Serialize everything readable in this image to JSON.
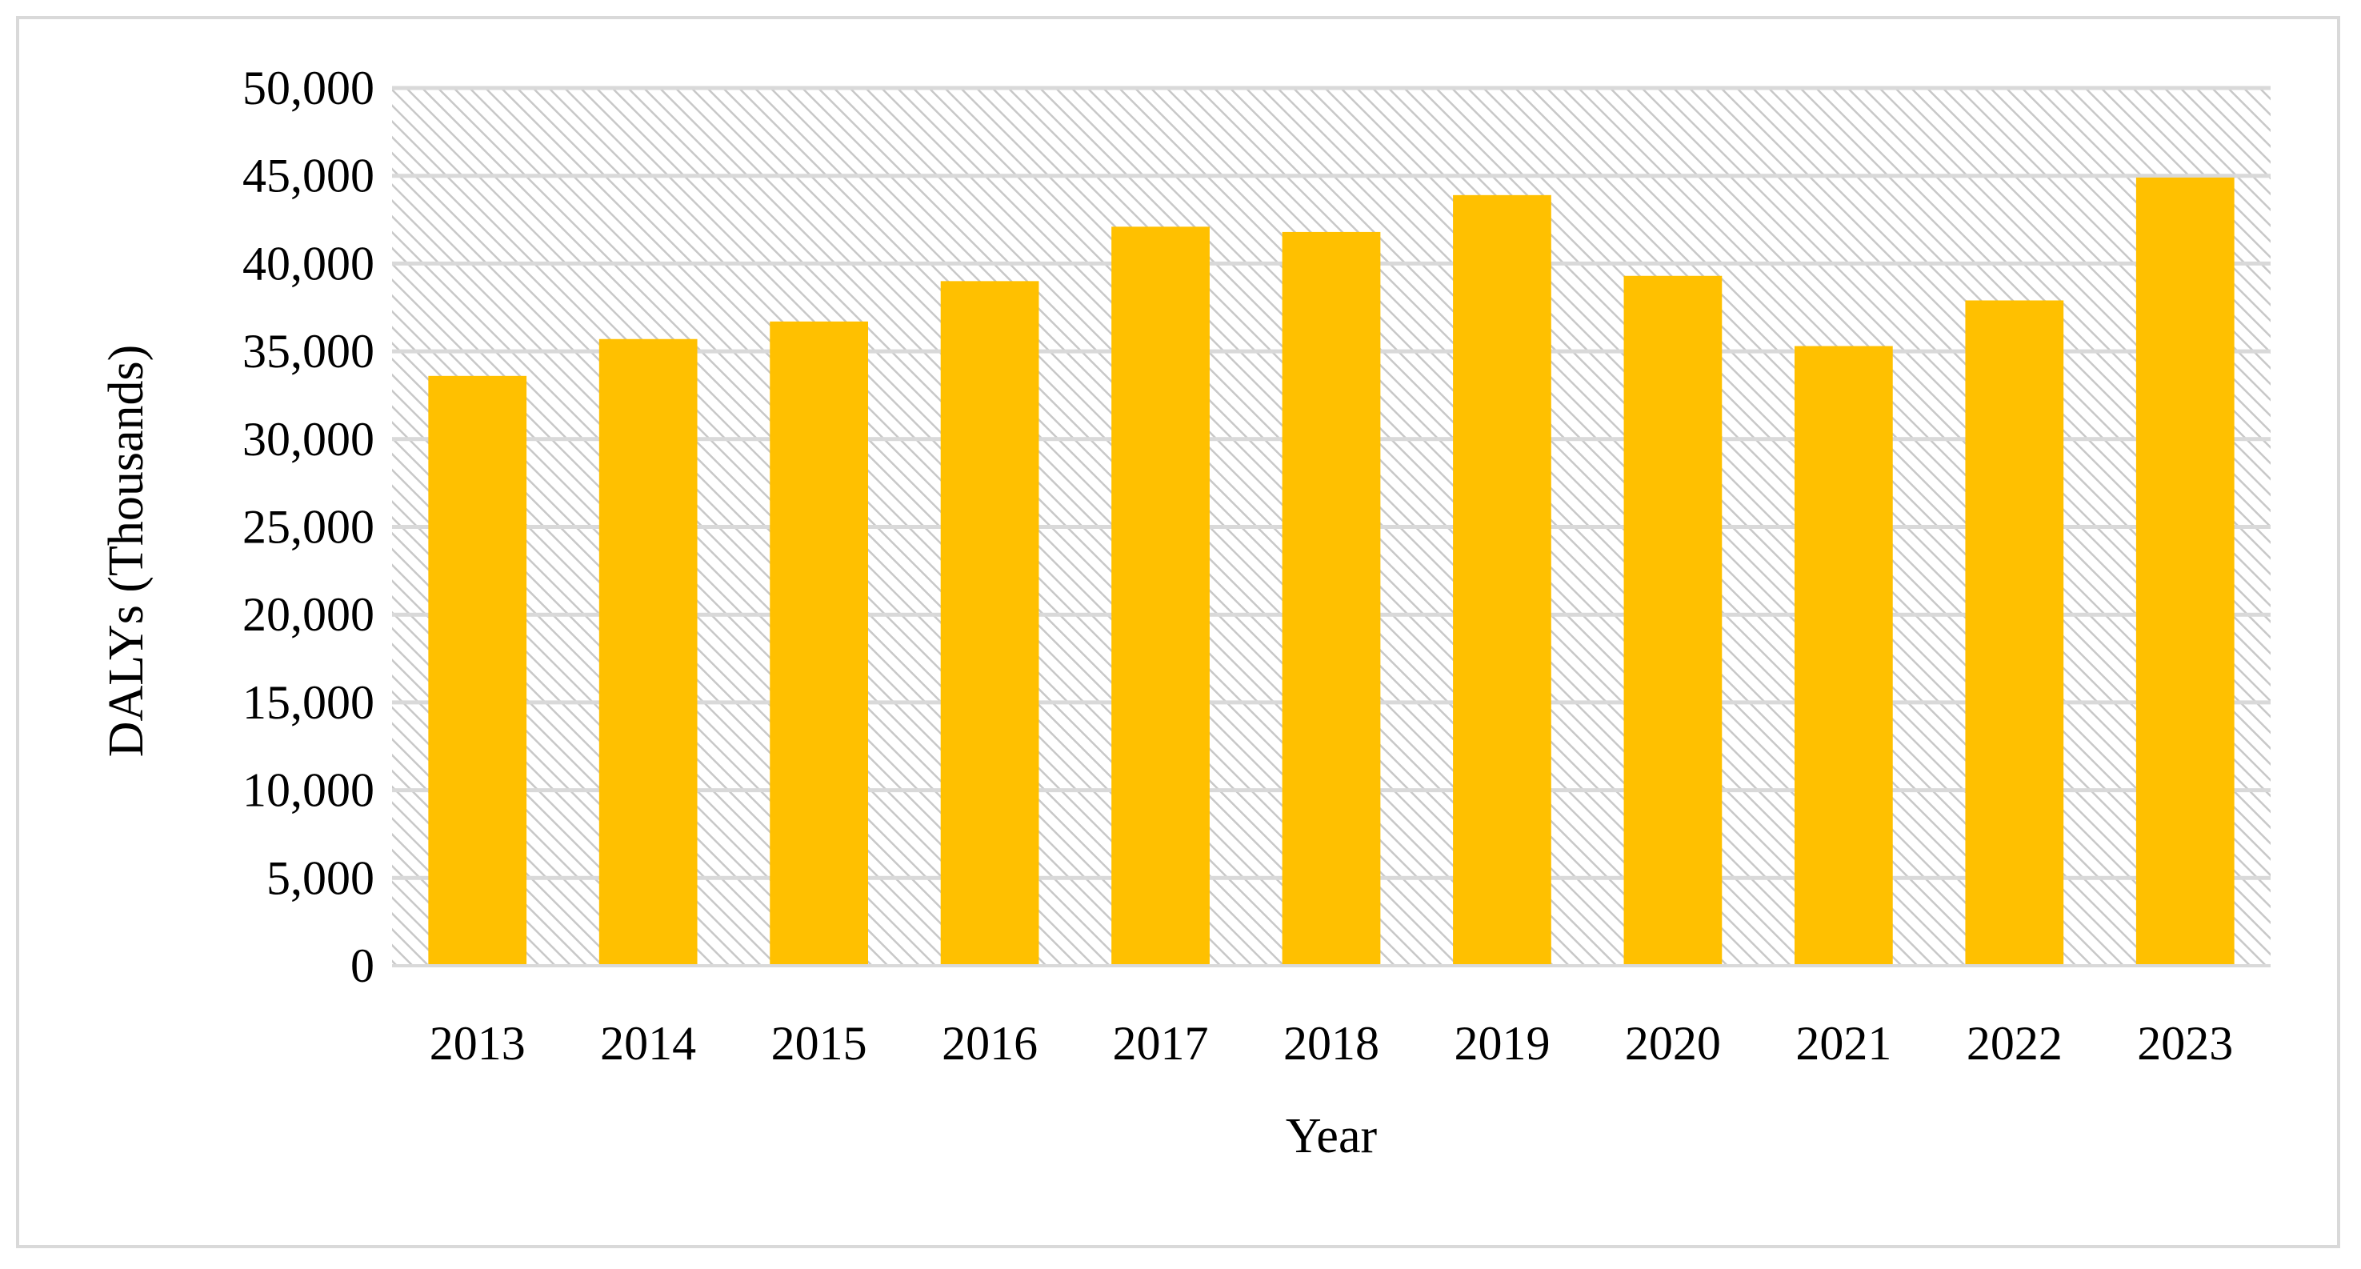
{
  "chart_data": {
    "type": "bar",
    "title": "",
    "xlabel": "Year",
    "ylabel": "DALYs (Thousands)",
    "categories": [
      "2013",
      "2014",
      "2015",
      "2016",
      "2017",
      "2018",
      "2019",
      "2020",
      "2021",
      "2022",
      "2023"
    ],
    "series": [
      {
        "values": [
          33600,
          35700,
          36700,
          39000,
          42100,
          41800,
          43900,
          39300,
          35300,
          37900,
          44900
        ]
      }
    ],
    "ylim": [
      0,
      50000
    ],
    "yticks": [
      0,
      5000,
      10000,
      15000,
      20000,
      25000,
      30000,
      35000,
      40000,
      45000,
      50000
    ],
    "ytick_labels": [
      "0",
      "5,000",
      "10,000",
      "15,000",
      "20,000",
      "25,000",
      "30,000",
      "35,000",
      "40,000",
      "45,000",
      "50,000"
    ],
    "grid": true,
    "legend": "none",
    "colors": {
      "bar": "#FFC000",
      "gridline": "#d9d9d9",
      "plot_hatch": "#bfbfbf",
      "frame": "#d9d9d9"
    }
  }
}
